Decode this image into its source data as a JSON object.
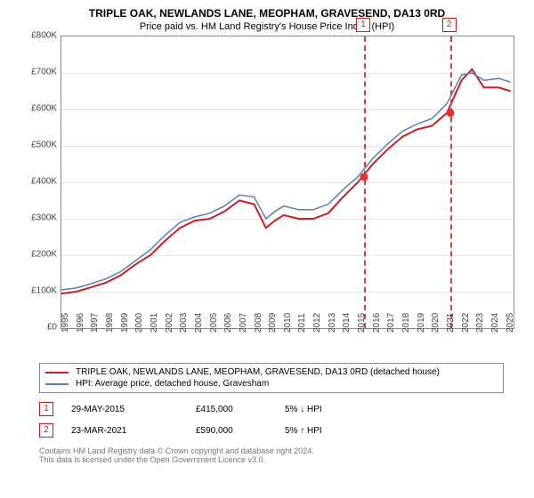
{
  "title": "TRIPLE OAK, NEWLANDS LANE, MEOPHAM, GRAVESEND, DA13 0RD",
  "subtitle": "Price paid vs. HM Land Registry's House Price Index (HPI)",
  "chart": {
    "type": "line",
    "background_color": "#ffffff",
    "grid_color": "#e6e6e6",
    "border_color": "#888888",
    "xlim": [
      1995,
      2025.5
    ],
    "ylim": [
      0,
      800000
    ],
    "ytick_step": 100000,
    "yticks": [
      "£0",
      "£100K",
      "£200K",
      "£300K",
      "£400K",
      "£500K",
      "£600K",
      "£700K",
      "£800K"
    ],
    "xticks": [
      "1995",
      "1996",
      "1997",
      "1998",
      "1999",
      "2000",
      "2001",
      "2002",
      "2003",
      "2004",
      "2005",
      "2006",
      "2007",
      "2008",
      "2009",
      "2010",
      "2011",
      "2012",
      "2013",
      "2014",
      "2015",
      "2016",
      "2017",
      "2018",
      "2019",
      "2020",
      "2021",
      "2022",
      "2023",
      "2024",
      "2025"
    ],
    "series": [
      {
        "name": "price_paid",
        "label": "TRIPLE OAK, NEWLANDS LANE, MEOPHAM, GRAVESEND, DA13 0RD (detached house)",
        "color": "#c82020",
        "line_width": 2,
        "x": [
          1995,
          1996,
          1997,
          1998,
          1999,
          2000,
          2001,
          2002,
          2003,
          2004,
          2005,
          2006,
          2007,
          2008,
          2008.8,
          2009.4,
          2010,
          2011,
          2012,
          2013,
          2014,
          2015,
          2016,
          2017,
          2018,
          2019,
          2020,
          2021,
          2022,
          2022.7,
          2023.5,
          2024.5,
          2025.3
        ],
        "y": [
          95000,
          100000,
          112000,
          125000,
          145000,
          175000,
          200000,
          240000,
          275000,
          295000,
          300000,
          320000,
          350000,
          340000,
          275000,
          295000,
          310000,
          300000,
          300000,
          315000,
          360000,
          400000,
          450000,
          490000,
          525000,
          545000,
          555000,
          590000,
          680000,
          710000,
          660000,
          660000,
          650000
        ]
      },
      {
        "name": "hpi",
        "label": "HPI: Average price, detached house, Gravesham",
        "color": "#5a7fb5",
        "line_width": 1.5,
        "x": [
          1995,
          1996,
          1997,
          1998,
          1999,
          2000,
          2001,
          2002,
          2003,
          2004,
          2005,
          2006,
          2007,
          2008,
          2008.8,
          2009.4,
          2010,
          2011,
          2012,
          2013,
          2014,
          2015,
          2016,
          2017,
          2018,
          2019,
          2020,
          2021,
          2022,
          2022.7,
          2023.5,
          2024.5,
          2025.3
        ],
        "y": [
          105000,
          110000,
          122000,
          135000,
          155000,
          185000,
          215000,
          255000,
          290000,
          305000,
          315000,
          335000,
          365000,
          360000,
          300000,
          320000,
          335000,
          325000,
          325000,
          340000,
          380000,
          415000,
          465000,
          505000,
          540000,
          560000,
          575000,
          615000,
          695000,
          700000,
          680000,
          685000,
          675000
        ]
      }
    ],
    "vlines": [
      {
        "x": 2015.41,
        "marker": "1",
        "color": "#d04040"
      },
      {
        "x": 2021.22,
        "marker": "2",
        "color": "#d04040"
      }
    ],
    "points": [
      {
        "x": 2015.41,
        "y": 415000,
        "color": "#e03030"
      },
      {
        "x": 2021.22,
        "y": 590000,
        "color": "#e03030"
      }
    ],
    "label_fontsize": 10,
    "title_fontsize": 12
  },
  "legend": {
    "items": [
      {
        "color": "#c82020",
        "label": "TRIPLE OAK, NEWLANDS LANE, MEOPHAM, GRAVESEND, DA13 0RD (detached house)"
      },
      {
        "color": "#5a7fb5",
        "label": "HPI: Average price, detached house, Gravesham"
      }
    ]
  },
  "sales": [
    {
      "marker": "1",
      "date": "29-MAY-2015",
      "price": "£415,000",
      "delta": "5% ↓ HPI"
    },
    {
      "marker": "2",
      "date": "23-MAR-2021",
      "price": "£590,000",
      "delta": "5% ↑ HPI"
    }
  ],
  "footer": {
    "line1": "Contains HM Land Registry data © Crown copyright and database right 2024.",
    "line2": "This data is licensed under the Open Government Licence v3.0."
  }
}
